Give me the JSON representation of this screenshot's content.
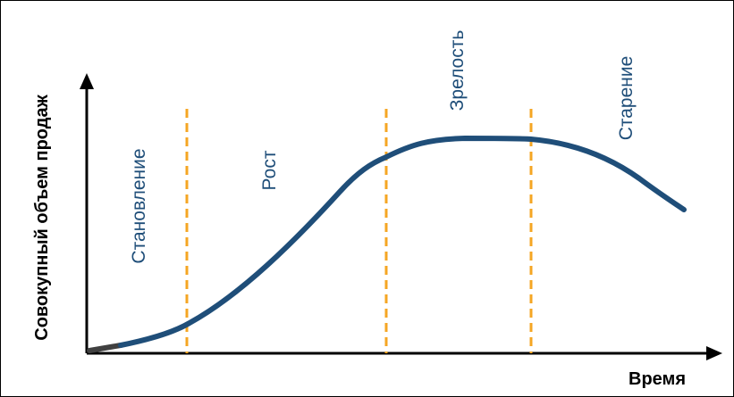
{
  "diagram": {
    "y_axis_label": "Совокупный объем продаж",
    "x_axis_label": "Время",
    "stages": [
      {
        "label": "Становление"
      },
      {
        "label": "Рост"
      },
      {
        "label": "Зрелость"
      },
      {
        "label": "Старение"
      }
    ],
    "colors": {
      "curve": "#1f4e79",
      "divider": "#f5a623",
      "axis": "#000000",
      "stage_text": "#1f4e79"
    }
  }
}
